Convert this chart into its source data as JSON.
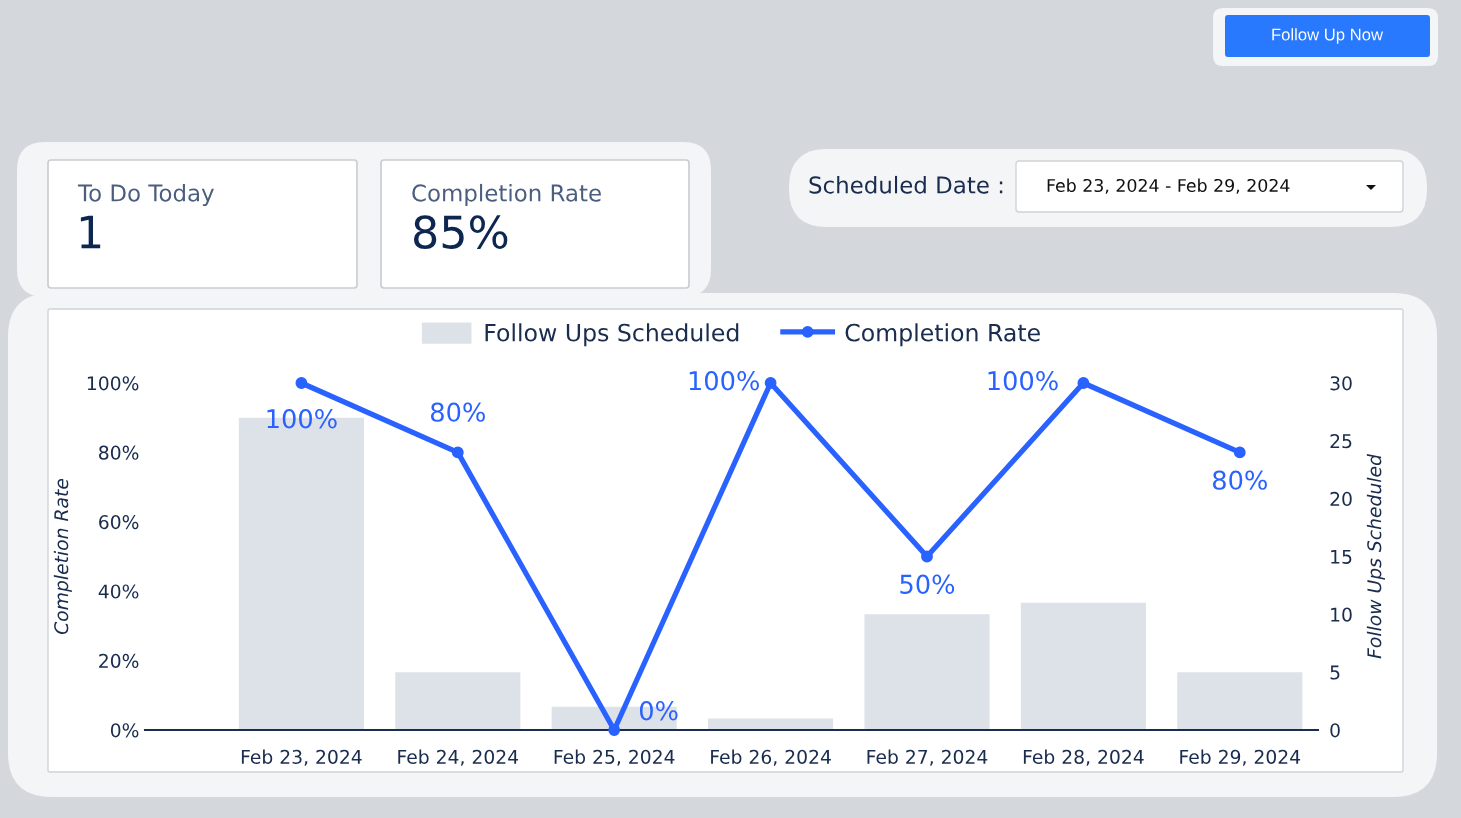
{
  "chart_data": [
    {
      "type": "other",
      "annotations": [
        "To Do Today",
        "1",
        "Completion Rate",
        "85%",
        "Scheduled Date :",
        "Feb 23, 2024 - Feb 29, 2024",
        "Follow Up Now"
      ]
    },
    {
      "type": "bar",
      "categories": [
        "Feb 23, 2024",
        "Feb 24, 2024",
        "Feb 25, 2024",
        "Feb 26, 2024",
        "Feb 27, 2024",
        "Feb 28, 2024",
        "Feb 29, 2024"
      ],
      "series": [
        {
          "name": "Follow Ups Scheduled",
          "type": "bar",
          "axis": "y2",
          "color": "#dde1e8",
          "values": [
            27,
            5,
            2,
            1,
            10,
            11,
            5
          ]
        },
        {
          "name": "Completion Rate",
          "type": "line",
          "color": "#2962ff",
          "values": [
            100,
            80,
            0,
            100,
            50,
            100,
            80
          ],
          "value_labels": [
            "100%",
            "80%",
            "0%",
            "100%",
            "50%",
            "100%",
            "80%"
          ]
        }
      ],
      "ylabel": "Completion Rate",
      "y2label": "Follow Ups Scheduled",
      "ylim": [
        0,
        100
      ],
      "yticks": [
        {
          "value": 0,
          "label": "0%"
        },
        {
          "value": 20,
          "label": "20%"
        },
        {
          "value": 40,
          "label": "40%"
        },
        {
          "value": 60,
          "label": "60%"
        },
        {
          "value": 80,
          "label": "80%"
        },
        {
          "value": 100,
          "label": "100%"
        }
      ],
      "y2lim": [
        0,
        30
      ],
      "y2ticks": [
        0,
        5,
        10,
        15,
        20,
        25,
        30
      ],
      "legend": "top",
      "marker": "circle",
      "line_style": "solid",
      "grid": false
    }
  ]
}
